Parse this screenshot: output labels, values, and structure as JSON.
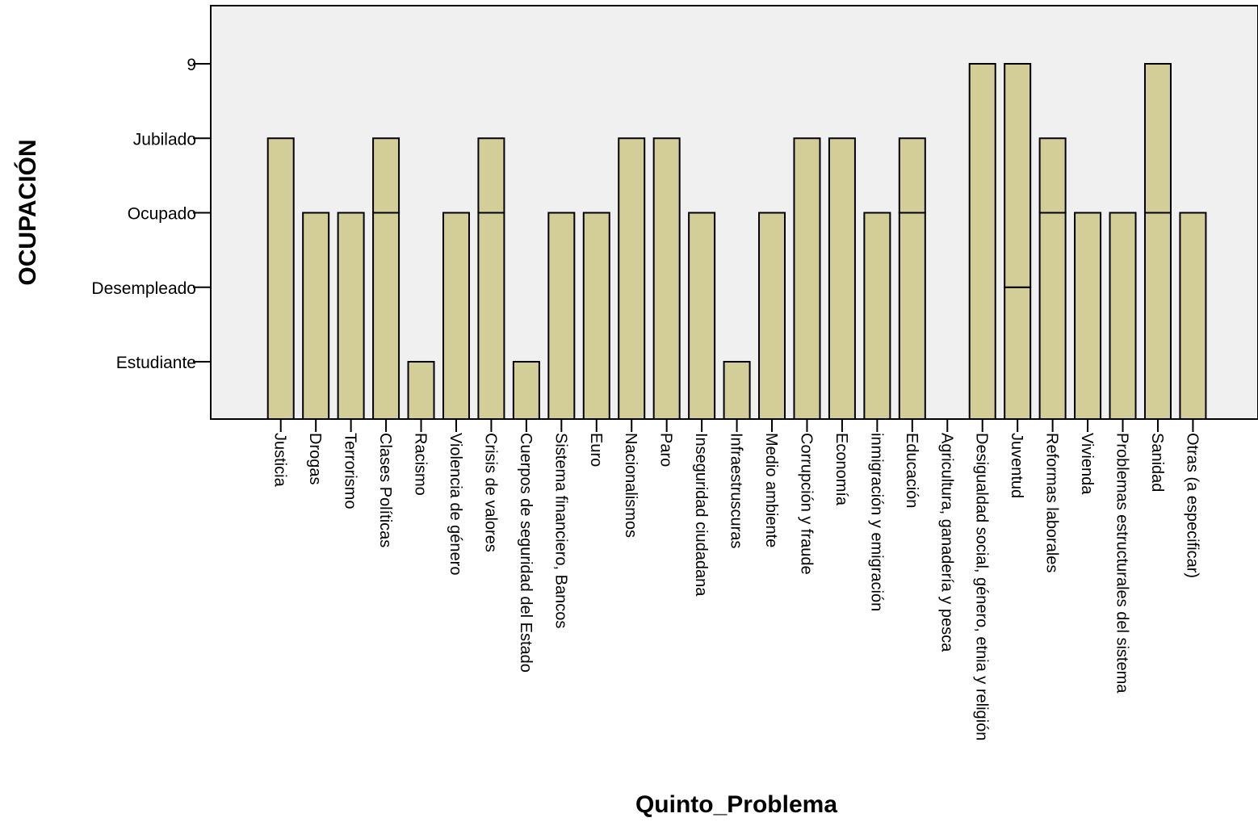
{
  "chart_data": {
    "type": "bar",
    "title": "",
    "xlabel": "Quinto_Problema",
    "ylabel": "OCUPACIÓN",
    "y_categories": [
      "Estudiante",
      "Desempleado",
      "Ocupado",
      "Jubilado",
      "9"
    ],
    "categories": [
      "Justicia",
      "Drogas",
      "Terrorismo",
      "Clases Políticas",
      "Racismo",
      "Violencia de género",
      "Crisis de valores",
      "Cuerpos de seguridad del Estado",
      "Sistema financiero, Bancos",
      "Euro",
      "Nacionalismos",
      "Paro",
      "Inseguridad ciudadana",
      "Infraestruscuras",
      "Medio ambiente",
      "Corrupción y fraude",
      "Economía",
      "inmigración y emigración",
      "Educación",
      "Agricultura, ganadería y pesca",
      "Desigualdad social, género, etnia y religión",
      "Juventud",
      "Reformas laborales",
      "Vivienda",
      "Problemas estructurales del sistema",
      "Sanidad",
      "Otras (a especificar)"
    ],
    "values": [
      [
        "Jubilado"
      ],
      [
        "Ocupado"
      ],
      [
        "Ocupado"
      ],
      [
        "Ocupado",
        "Jubilado"
      ],
      [
        "Estudiante"
      ],
      [
        "Ocupado"
      ],
      [
        "Ocupado",
        "Jubilado"
      ],
      [
        "Estudiante"
      ],
      [
        "Ocupado"
      ],
      [
        "Ocupado"
      ],
      [
        "Jubilado"
      ],
      [
        "Jubilado"
      ],
      [
        "Ocupado"
      ],
      [
        "Estudiante"
      ],
      [
        "Ocupado"
      ],
      [
        "Jubilado"
      ],
      [
        "Jubilado"
      ],
      [
        "Ocupado"
      ],
      [
        "Ocupado",
        "Jubilado"
      ],
      [],
      [
        "9"
      ],
      [
        "Desempleado",
        "9"
      ],
      [
        "Ocupado",
        "Jubilado"
      ],
      [
        "Ocupado"
      ],
      [
        "Ocupado"
      ],
      [
        "Ocupado",
        "9"
      ],
      [
        "Ocupado"
      ]
    ],
    "grid": false,
    "legend": "none",
    "colors": {
      "bar": "#d3cd97",
      "plot_background": "#f0f0f0",
      "stroke": "#000000"
    }
  }
}
